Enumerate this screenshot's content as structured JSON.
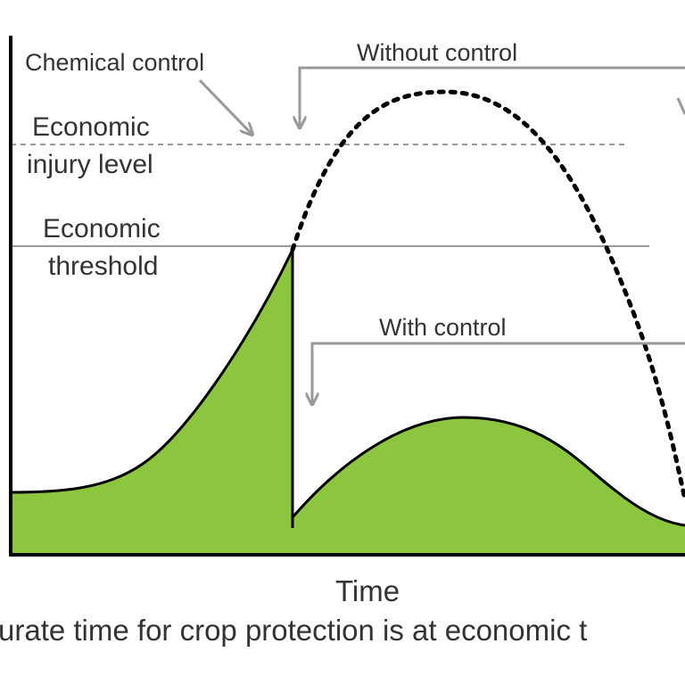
{
  "diagram": {
    "labels": {
      "chemical_control": "Chemical control",
      "without_control": "Without control",
      "economic_injury_line1": "Economic",
      "economic_injury_line2": "injury level",
      "economic_threshold_line1": "Economic",
      "economic_threshold_line2": "threshold",
      "with_control": "With control",
      "x_axis": "Time"
    },
    "caption": "urate time for crop protection is at economic t",
    "colors": {
      "fill": "#8cc63f",
      "curve": "#000000",
      "reference_lines": "#999999",
      "arrows": "#999999",
      "axes": "#000000"
    }
  }
}
